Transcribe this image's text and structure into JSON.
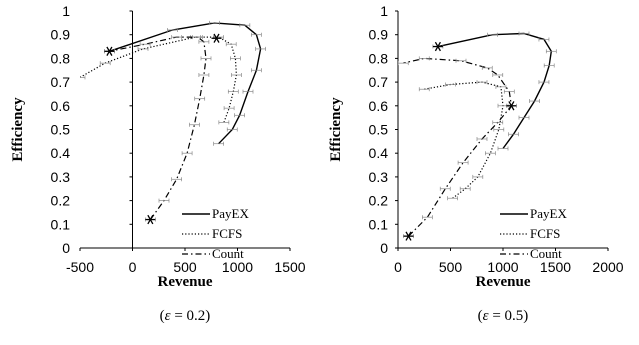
{
  "chart_data": [
    {
      "type": "line",
      "caption": {
        "open": "(",
        "eps": "ε",
        "rest": " = 0.2)"
      },
      "xlabel": "Revenue",
      "ylabel": "Efficiency",
      "xlim": [
        -500,
        1500
      ],
      "ylim": [
        0,
        1
      ],
      "xticks": [
        "-500",
        "0",
        "500",
        "1000",
        "1500"
      ],
      "xtick_values": [
        -500,
        0,
        500,
        1000,
        1500
      ],
      "yticks": [
        "0",
        "0.1",
        "0.2",
        "0.3",
        "0.4",
        "0.5",
        "0.6",
        "0.7",
        "0.8",
        "0.9",
        "1"
      ],
      "ytick_values": [
        0,
        0.1,
        0.2,
        0.3,
        0.4,
        0.5,
        0.6,
        0.7,
        0.8,
        0.9,
        1
      ],
      "legend_position": "bottom-right",
      "series": [
        {
          "name": "PayEX",
          "dash": "solid",
          "points": [
            [
              -220,
              0.83
            ],
            [
              380,
              0.92
            ],
            [
              780,
              0.95
            ],
            [
              1070,
              0.94
            ],
            [
              1180,
              0.9
            ],
            [
              1220,
              0.84
            ],
            [
              1180,
              0.75
            ],
            [
              1100,
              0.66
            ],
            [
              1020,
              0.56
            ],
            [
              950,
              0.5
            ],
            [
              820,
              0.44
            ]
          ]
        },
        {
          "name": "FCFS",
          "dash": "dotted",
          "points": [
            [
              -500,
              0.72
            ],
            [
              -260,
              0.78
            ],
            [
              100,
              0.84
            ],
            [
              600,
              0.89
            ],
            [
              820,
              0.89
            ],
            [
              940,
              0.86
            ],
            [
              980,
              0.8
            ],
            [
              990,
              0.73
            ],
            [
              960,
              0.66
            ],
            [
              920,
              0.59
            ],
            [
              870,
              0.53
            ]
          ]
        },
        {
          "name": "Count",
          "dash": "dashdot",
          "points": [
            [
              170,
              0.12
            ],
            [
              300,
              0.2
            ],
            [
              420,
              0.29
            ],
            [
              520,
              0.4
            ],
            [
              590,
              0.52
            ],
            [
              640,
              0.63
            ],
            [
              680,
              0.73
            ],
            [
              700,
              0.8
            ],
            [
              680,
              0.87
            ],
            [
              620,
              0.89
            ],
            [
              420,
              0.89
            ],
            [
              120,
              0.86
            ],
            [
              -220,
              0.83
            ]
          ]
        }
      ],
      "markers": [
        [
          -220,
          0.83
        ],
        [
          800,
          0.885
        ],
        [
          170,
          0.12
        ]
      ]
    },
    {
      "type": "line",
      "caption": {
        "open": "(",
        "eps": "ε",
        "rest": " = 0.5)"
      },
      "xlabel": "Revenue",
      "ylabel": "Efficiency",
      "xlim": [
        0,
        2000
      ],
      "ylim": [
        0,
        1
      ],
      "xticks": [
        "0",
        "500",
        "1000",
        "1500",
        "2000"
      ],
      "xtick_values": [
        0,
        500,
        1000,
        1500,
        2000
      ],
      "yticks": [
        "0",
        "0.1",
        "0.2",
        "0.3",
        "0.4",
        "0.5",
        "0.6",
        "0.7",
        "0.8",
        "0.9",
        "1"
      ],
      "ytick_values": [
        0,
        0.1,
        0.2,
        0.3,
        0.4,
        0.5,
        0.6,
        0.7,
        0.8,
        0.9,
        1
      ],
      "legend_position": "bottom-right",
      "series": [
        {
          "name": "PayEX",
          "dash": "solid",
          "points": [
            [
              380,
              0.85
            ],
            [
              900,
              0.9
            ],
            [
              1200,
              0.905
            ],
            [
              1390,
              0.88
            ],
            [
              1460,
              0.83
            ],
            [
              1440,
              0.77
            ],
            [
              1390,
              0.7
            ],
            [
              1300,
              0.62
            ],
            [
              1200,
              0.55
            ],
            [
              1100,
              0.48
            ],
            [
              1000,
              0.42
            ]
          ]
        },
        {
          "name": "FCFS",
          "dash": "dotted",
          "points": [
            [
              250,
              0.67
            ],
            [
              500,
              0.69
            ],
            [
              800,
              0.7
            ],
            [
              980,
              0.68
            ],
            [
              1000,
              0.6
            ],
            [
              960,
              0.5
            ],
            [
              880,
              0.4
            ],
            [
              760,
              0.3
            ],
            [
              640,
              0.25
            ],
            [
              520,
              0.21
            ]
          ]
        },
        {
          "name": "Count",
          "dash": "dashdot",
          "points": [
            [
              100,
              0.05
            ],
            [
              280,
              0.13
            ],
            [
              450,
              0.25
            ],
            [
              620,
              0.36
            ],
            [
              800,
              0.46
            ],
            [
              950,
              0.53
            ],
            [
              1080,
              0.6
            ],
            [
              1060,
              0.66
            ],
            [
              950,
              0.73
            ],
            [
              850,
              0.76
            ],
            [
              600,
              0.79
            ],
            [
              250,
              0.8
            ],
            [
              50,
              0.78
            ]
          ]
        }
      ],
      "markers": [
        [
          380,
          0.85
        ],
        [
          1080,
          0.6
        ],
        [
          100,
          0.05
        ]
      ]
    }
  ]
}
